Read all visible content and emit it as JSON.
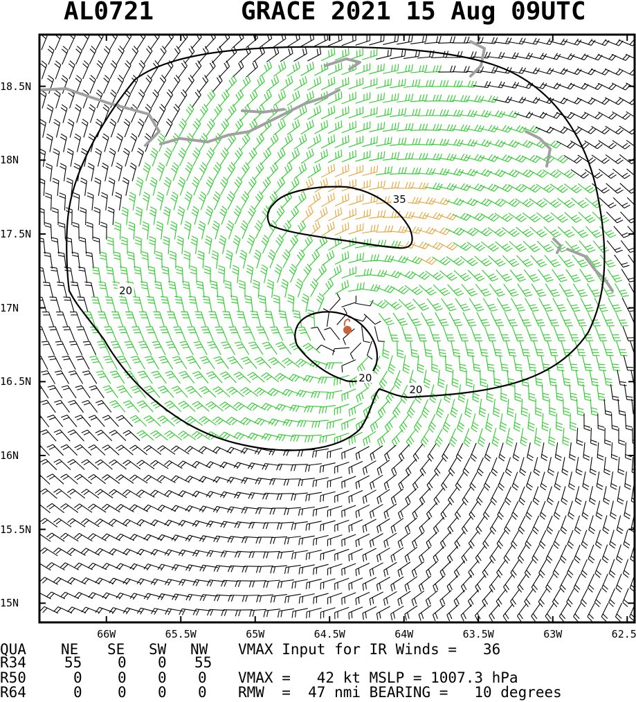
{
  "title": {
    "storm_id": "AL0721",
    "storm_info": "GRACE 2021 15 Aug 09UTC"
  },
  "map": {
    "lon_range": [
      -66.45,
      -62.45
    ],
    "lat_range": [
      14.87,
      18.85
    ],
    "center": {
      "lon": -64.38,
      "lat": 16.85
    },
    "x_ticks": [
      {
        "lon": -66.0,
        "label": "66W"
      },
      {
        "lon": -65.5,
        "label": "65.5W"
      },
      {
        "lon": -65.0,
        "label": "65W"
      },
      {
        "lon": -64.5,
        "label": "64.5W"
      },
      {
        "lon": -64.0,
        "label": "64W"
      },
      {
        "lon": -63.5,
        "label": "63.5W"
      },
      {
        "lon": -63.0,
        "label": "63W"
      },
      {
        "lon": -62.5,
        "label": "62.5W"
      }
    ],
    "y_ticks": [
      {
        "lat": 18.5,
        "label": "18.5N"
      },
      {
        "lat": 18.0,
        "label": "18N"
      },
      {
        "lat": 17.5,
        "label": "17.5N"
      },
      {
        "lat": 17.0,
        "label": "17N"
      },
      {
        "lat": 16.5,
        "label": "16.5N"
      },
      {
        "lat": 16.0,
        "label": "16N"
      },
      {
        "lat": 15.5,
        "label": "15.5N"
      },
      {
        "lat": 15.0,
        "label": "15N"
      }
    ],
    "contour_labels": [
      {
        "label": "35",
        "lon": -64.03,
        "lat": 17.74
      },
      {
        "label": "20",
        "lon": -65.87,
        "lat": 17.12
      },
      {
        "label": "20",
        "lon": -64.26,
        "lat": 16.53
      },
      {
        "label": "20",
        "lon": -63.92,
        "lat": 16.45
      }
    ],
    "colors": {
      "barb_weak": "#000000",
      "barb_34kt": "#22cc22",
      "barb_50kt": "#e8a030",
      "land": "#a0a0a0",
      "contour": "#000000",
      "center_marker": "#c8643c"
    }
  },
  "table": {
    "header": [
      "QUA",
      "NE",
      "SE",
      "SW",
      "NW"
    ],
    "rows": [
      [
        "R34",
        "55",
        "0",
        "0",
        "55"
      ],
      [
        "R50",
        "0",
        "0",
        "0",
        "0"
      ],
      [
        "R64",
        "0",
        "0",
        "0",
        "0"
      ]
    ]
  },
  "info": {
    "line1": "VMAX Input for IR Winds =   36",
    "line2": "VMAX =   42 kt MSLP = 1007.3 hPa",
    "line3": "RMW  =  47 nmi BEARING =   10 degrees"
  }
}
